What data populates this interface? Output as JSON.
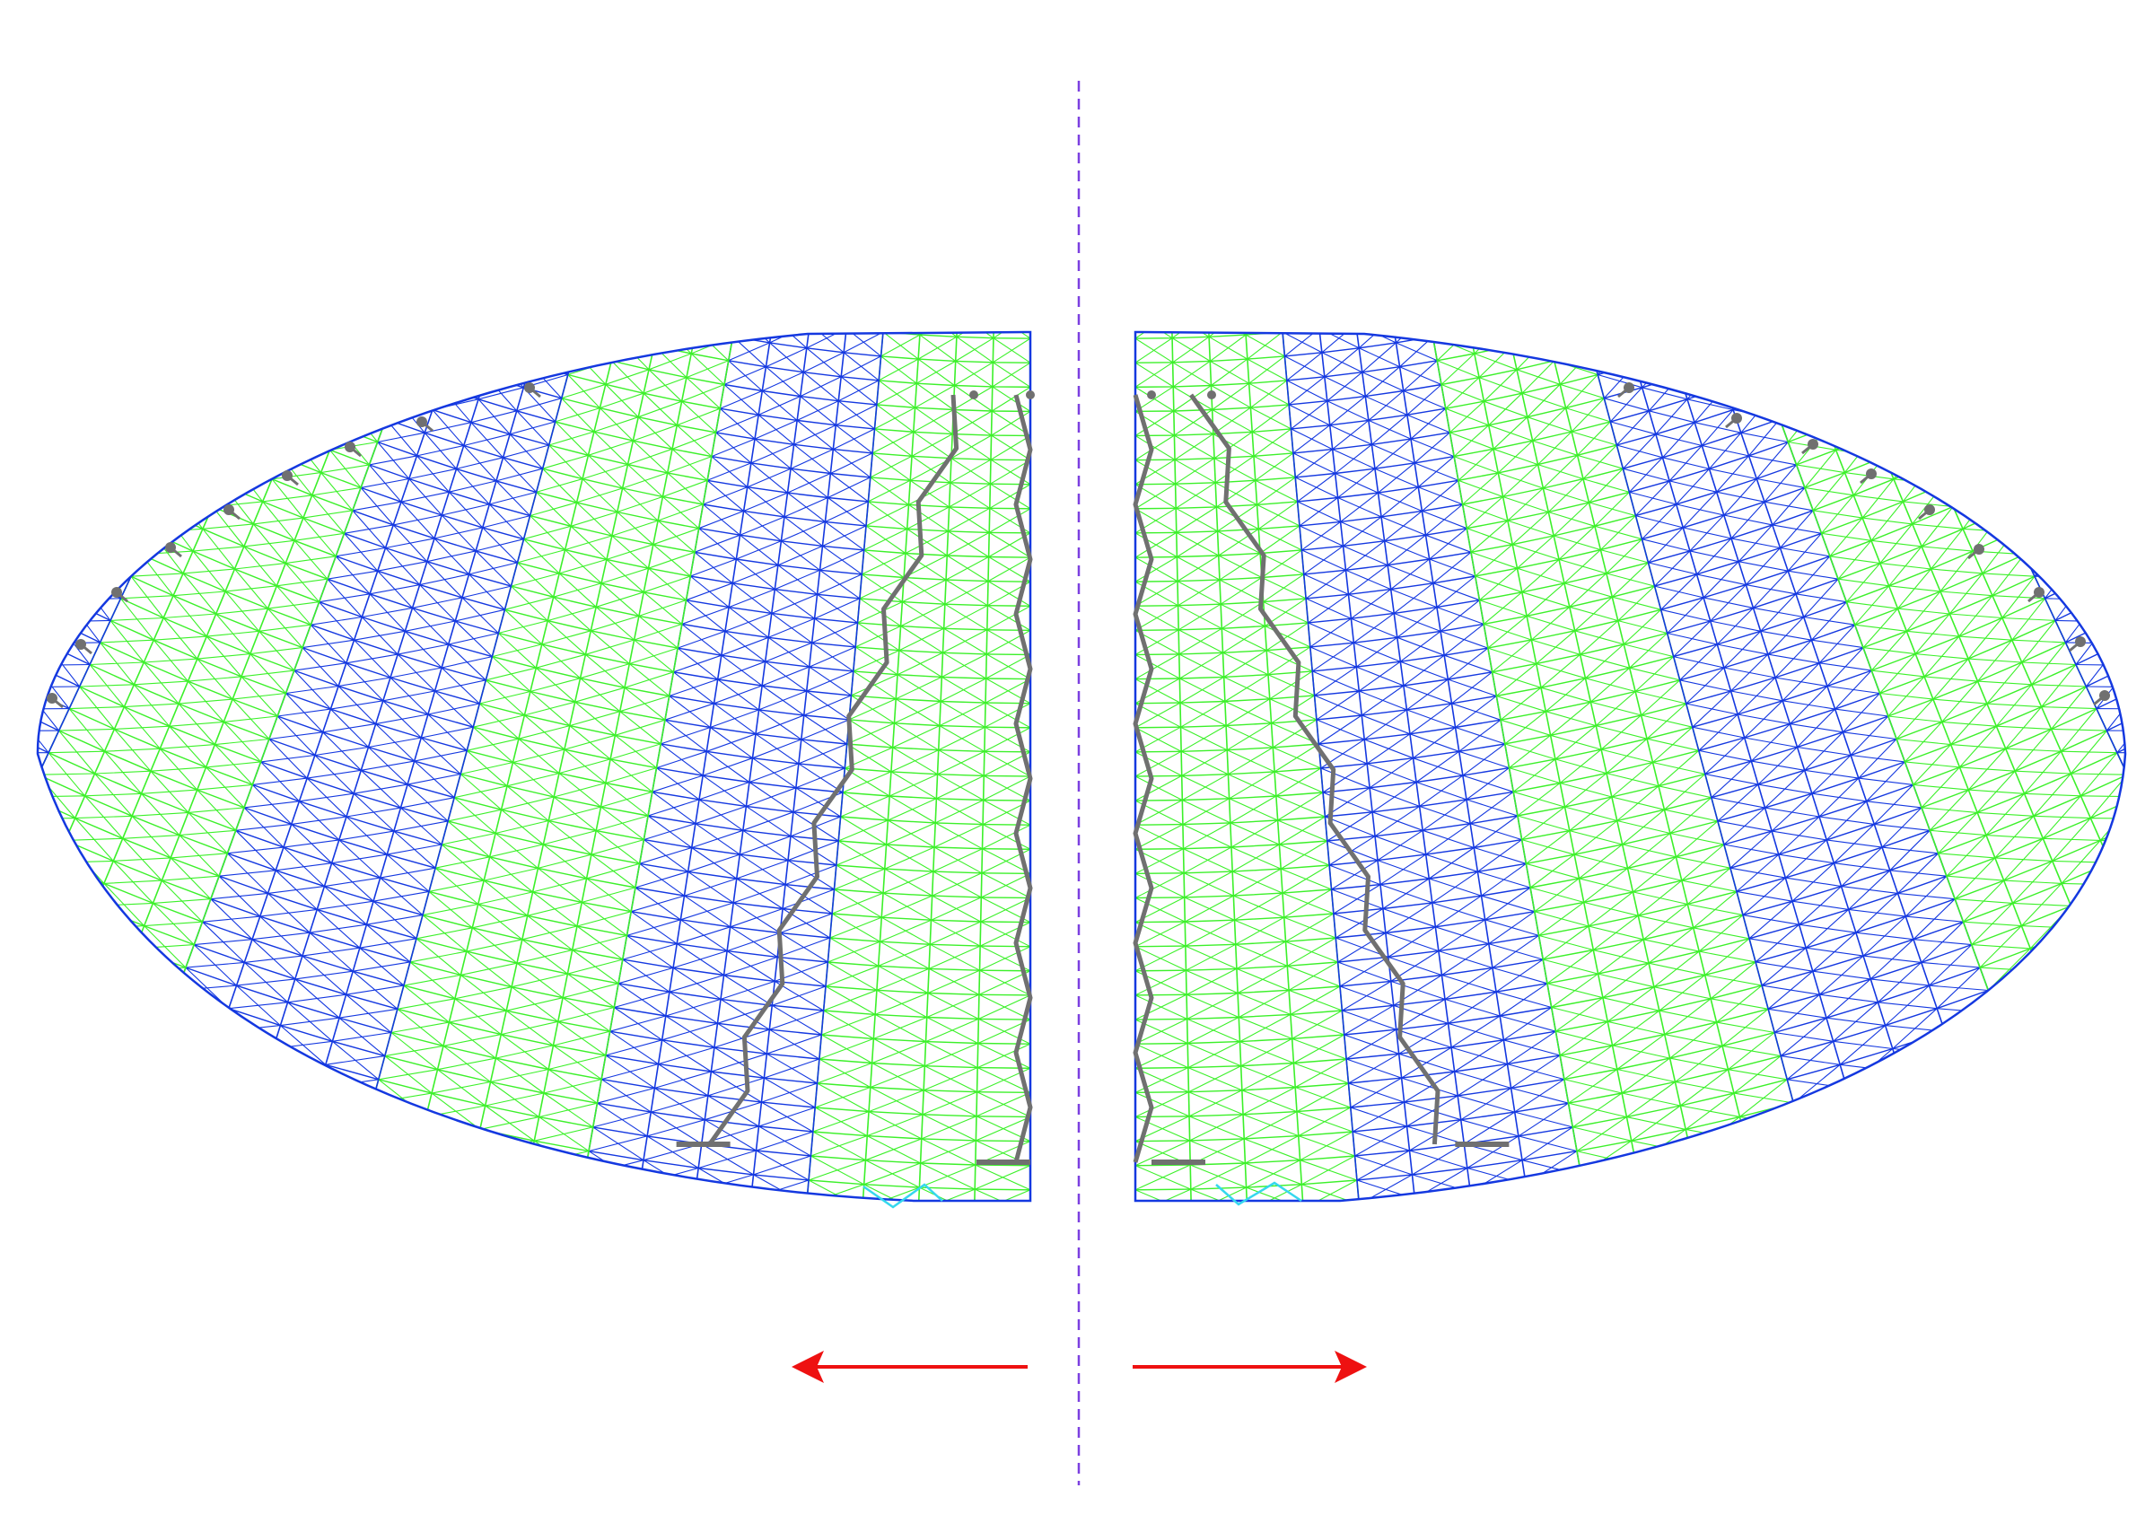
{
  "diagram": {
    "labels": [],
    "colors": {
      "blue": "#1438e0",
      "green": "#3cf02a",
      "cyan": "#35d7ee",
      "truss": "#707070",
      "axis": "#7b3fe0",
      "arrow": "#ee1111",
      "background": "#ffffff"
    },
    "halves": [
      {
        "name": "left-half",
        "strips": 12,
        "gap_strip": 9
      },
      {
        "name": "right-half",
        "strips": 12,
        "gap_strip": 2
      }
    ],
    "arrows": [
      {
        "name": "left-arrow",
        "direction": "left"
      },
      {
        "name": "right-arrow",
        "direction": "right"
      }
    ],
    "axis": {
      "name": "center-axis",
      "style": "dashed"
    }
  }
}
